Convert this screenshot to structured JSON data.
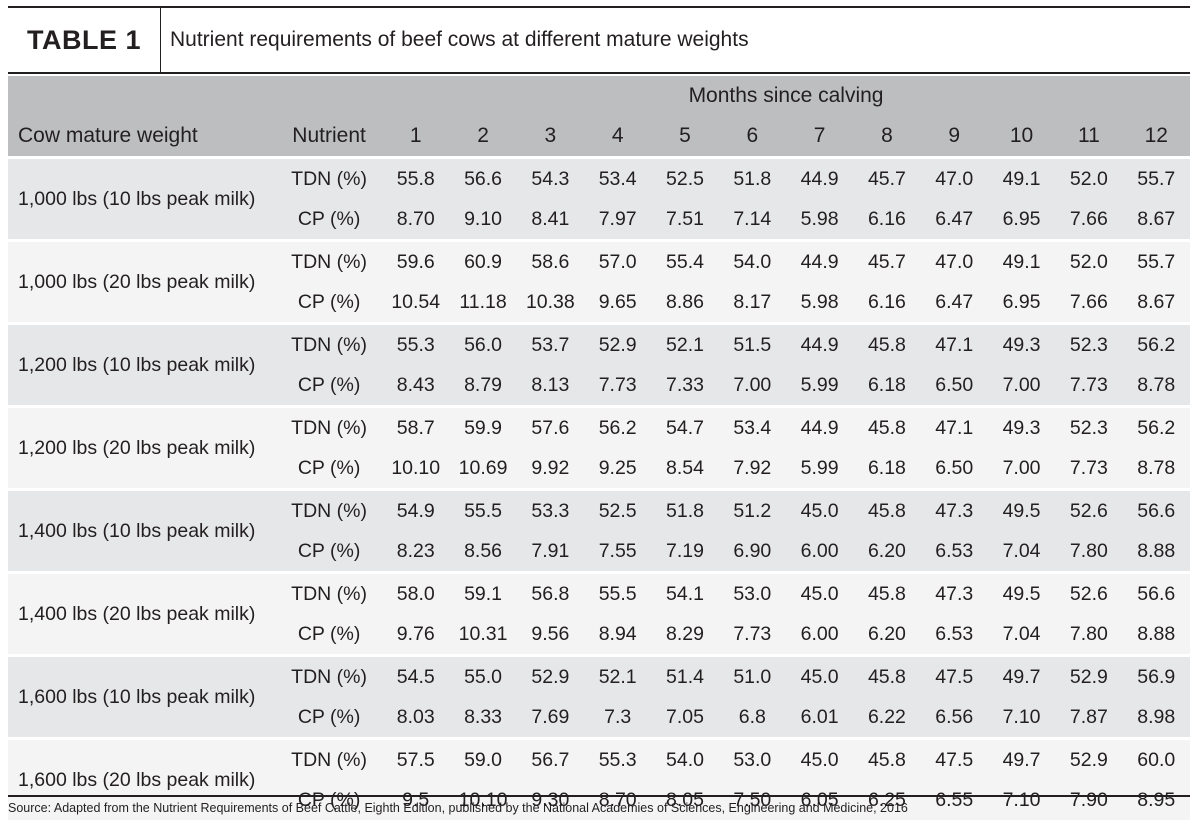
{
  "title": {
    "label": "TABLE 1",
    "text": "Nutrient requirements of beef cows at different mature weights"
  },
  "header": {
    "group_label": "Months since calving",
    "weight_label": "Cow mature weight",
    "nutrient_label": "Nutrient",
    "months": [
      "1",
      "2",
      "3",
      "4",
      "5",
      "6",
      "7",
      "8",
      "9",
      "10",
      "11",
      "12"
    ]
  },
  "rows": [
    {
      "weight": "1,000 lbs (10 lbs peak milk)",
      "tdn": {
        "label": "TDN (%)",
        "values": [
          "55.8",
          "56.6",
          "54.3",
          "53.4",
          "52.5",
          "51.8",
          "44.9",
          "45.7",
          "47.0",
          "49.1",
          "52.0",
          "55.7"
        ]
      },
      "cp": {
        "label": "CP (%)",
        "values": [
          "8.70",
          "9.10",
          "8.41",
          "7.97",
          "7.51",
          "7.14",
          "5.98",
          "6.16",
          "6.47",
          "6.95",
          "7.66",
          "8.67"
        ]
      }
    },
    {
      "weight": "1,000 lbs (20 lbs peak milk)",
      "tdn": {
        "label": "TDN (%)",
        "values": [
          "59.6",
          "60.9",
          "58.6",
          "57.0",
          "55.4",
          "54.0",
          "44.9",
          "45.7",
          "47.0",
          "49.1",
          "52.0",
          "55.7"
        ]
      },
      "cp": {
        "label": "CP (%)",
        "values": [
          "10.54",
          "11.18",
          "10.38",
          "9.65",
          "8.86",
          "8.17",
          "5.98",
          "6.16",
          "6.47",
          "6.95",
          "7.66",
          "8.67"
        ]
      }
    },
    {
      "weight": "1,200 lbs (10 lbs peak milk)",
      "tdn": {
        "label": "TDN (%)",
        "values": [
          "55.3",
          "56.0",
          "53.7",
          "52.9",
          "52.1",
          "51.5",
          "44.9",
          "45.8",
          "47.1",
          "49.3",
          "52.3",
          "56.2"
        ]
      },
      "cp": {
        "label": "CP (%)",
        "values": [
          "8.43",
          "8.79",
          "8.13",
          "7.73",
          "7.33",
          "7.00",
          "5.99",
          "6.18",
          "6.50",
          "7.00",
          "7.73",
          "8.78"
        ]
      }
    },
    {
      "weight": "1,200 lbs (20 lbs peak milk)",
      "tdn": {
        "label": "TDN (%)",
        "values": [
          "58.7",
          "59.9",
          "57.6",
          "56.2",
          "54.7",
          "53.4",
          "44.9",
          "45.8",
          "47.1",
          "49.3",
          "52.3",
          "56.2"
        ]
      },
      "cp": {
        "label": "CP (%)",
        "values": [
          "10.10",
          "10.69",
          "9.92",
          "9.25",
          "8.54",
          "7.92",
          "5.99",
          "6.18",
          "6.50",
          "7.00",
          "7.73",
          "8.78"
        ]
      }
    },
    {
      "weight": "1,400 lbs (10 lbs peak milk)",
      "tdn": {
        "label": "TDN (%)",
        "values": [
          "54.9",
          "55.5",
          "53.3",
          "52.5",
          "51.8",
          "51.2",
          "45.0",
          "45.8",
          "47.3",
          "49.5",
          "52.6",
          "56.6"
        ]
      },
      "cp": {
        "label": "CP (%)",
        "values": [
          "8.23",
          "8.56",
          "7.91",
          "7.55",
          "7.19",
          "6.90",
          "6.00",
          "6.20",
          "6.53",
          "7.04",
          "7.80",
          "8.88"
        ]
      }
    },
    {
      "weight": "1,400 lbs (20 lbs peak milk)",
      "tdn": {
        "label": "TDN (%)",
        "values": [
          "58.0",
          "59.1",
          "56.8",
          "55.5",
          "54.1",
          "53.0",
          "45.0",
          "45.8",
          "47.3",
          "49.5",
          "52.6",
          "56.6"
        ]
      },
      "cp": {
        "label": "CP (%)",
        "values": [
          "9.76",
          "10.31",
          "9.56",
          "8.94",
          "8.29",
          "7.73",
          "6.00",
          "6.20",
          "6.53",
          "7.04",
          "7.80",
          "8.88"
        ]
      }
    },
    {
      "weight": "1,600 lbs (10 lbs peak milk)",
      "tdn": {
        "label": "TDN (%)",
        "values": [
          "54.5",
          "55.0",
          "52.9",
          "52.1",
          "51.4",
          "51.0",
          "45.0",
          "45.8",
          "47.5",
          "49.7",
          "52.9",
          "56.9"
        ]
      },
      "cp": {
        "label": "CP (%)",
        "values": [
          "8.03",
          "8.33",
          "7.69",
          "7.3",
          "7.05",
          "6.8",
          "6.01",
          "6.22",
          "6.56",
          "7.10",
          "7.87",
          "8.98"
        ]
      }
    },
    {
      "weight": "1,600 lbs (20 lbs peak milk)",
      "tdn": {
        "label": "TDN (%)",
        "values": [
          "57.5",
          "59.0",
          "56.7",
          "55.3",
          "54.0",
          "53.0",
          "45.0",
          "45.8",
          "47.5",
          "49.7",
          "52.9",
          "60.0"
        ]
      },
      "cp": {
        "label": "CP (%)",
        "values": [
          "9.5",
          "10.10",
          "9.30",
          "8.70",
          "8.05",
          "7.50",
          "6.05",
          "6.25",
          "6.55",
          "7.10",
          "7.90",
          "8.95"
        ]
      }
    }
  ],
  "source": "Source: Adapted from the Nutrient Requirements of Beef Cattle, Eighth Edition, published by the National Academies of Sciences, Engineering and Medicine, 2016",
  "colors": {
    "header_bg": "#bcbec0",
    "row_dark": "#e6e7e8",
    "row_light": "#f4f4f4",
    "text": "#231f20"
  }
}
